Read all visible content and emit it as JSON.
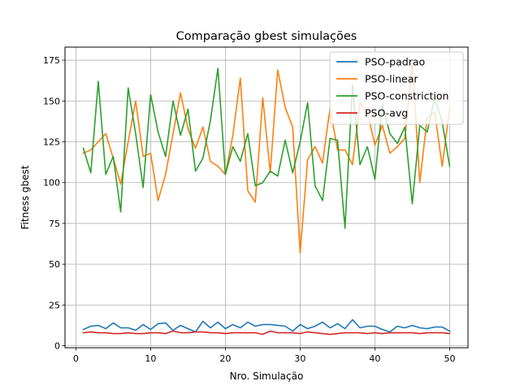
{
  "chart_data": {
    "type": "line",
    "title": "Comparação gbest simulações",
    "xlabel": "Nro. Simulação",
    "ylabel": "Fitness gbest",
    "xlim": [
      -1.45,
      52.45
    ],
    "ylim": [
      -1.2,
      183
    ],
    "xticks": [
      0,
      10,
      20,
      30,
      40,
      50
    ],
    "yticks": [
      0,
      25,
      50,
      75,
      100,
      125,
      150,
      175
    ],
    "grid": true,
    "legend_position": "top-right",
    "x": [
      1,
      2,
      3,
      4,
      5,
      6,
      7,
      8,
      9,
      10,
      11,
      12,
      13,
      14,
      15,
      16,
      17,
      18,
      19,
      20,
      21,
      22,
      23,
      24,
      25,
      26,
      27,
      28,
      29,
      30,
      31,
      32,
      33,
      34,
      35,
      36,
      37,
      38,
      39,
      40,
      41,
      42,
      43,
      44,
      45,
      46,
      47,
      48,
      49,
      50
    ],
    "series": [
      {
        "name": "PSO-padrao",
        "color": "#1f77b4",
        "values": [
          10.0,
          12.0,
          12.5,
          10.5,
          14.0,
          11.0,
          11.0,
          9.5,
          13.0,
          10.0,
          13.5,
          14.0,
          9.5,
          12.5,
          10.5,
          8.5,
          15.0,
          11.0,
          14.5,
          10.5,
          13.0,
          11.0,
          14.5,
          12.0,
          13.0,
          13.0,
          12.5,
          12.0,
          9.0,
          13.0,
          10.5,
          12.0,
          14.5,
          11.0,
          13.5,
          10.5,
          16.0,
          11.0,
          12.0,
          12.0,
          10.0,
          8.5,
          12.0,
          11.0,
          12.5,
          11.0,
          10.5,
          11.5,
          11.5,
          9.0
        ]
      },
      {
        "name": "PSO-linear",
        "color": "#ff7f0e",
        "values": [
          118,
          120,
          125,
          130,
          115,
          99,
          125,
          150,
          116,
          118,
          89,
          105,
          130,
          155,
          133,
          121,
          134,
          113,
          110,
          105,
          129,
          164,
          95,
          88,
          152,
          106,
          169,
          146,
          134,
          57,
          114,
          122,
          112,
          146,
          120,
          120,
          111,
          149,
          143,
          123,
          135,
          118,
          122,
          127,
          174,
          100,
          140,
          143,
          110,
          146
        ]
      },
      {
        "name": "PSO-constriction",
        "color": "#2ca02c",
        "values": [
          121,
          106,
          162,
          105,
          116,
          82,
          158,
          130,
          97,
          154,
          131,
          116,
          150,
          129,
          145,
          107,
          115,
          138,
          170,
          105,
          122,
          113,
          130,
          98,
          100,
          107,
          104,
          126,
          106,
          125,
          149,
          98,
          89,
          127,
          126,
          72,
          160,
          111,
          122,
          102,
          148,
          130,
          124,
          134,
          87,
          135,
          131,
          152,
          137,
          110
        ]
      },
      {
        "name": "PSO-avg",
        "color": "#d62728",
        "values": [
          8.0,
          8.5,
          8.0,
          8.0,
          7.5,
          7.5,
          8.0,
          7.5,
          7.5,
          8.0,
          8.0,
          7.5,
          9.0,
          8.0,
          8.0,
          8.5,
          8.5,
          8.0,
          8.0,
          7.5,
          8.0,
          8.0,
          8.0,
          8.0,
          7.0,
          9.0,
          8.0,
          8.0,
          8.0,
          7.5,
          8.5,
          8.0,
          7.5,
          7.0,
          7.5,
          8.0,
          8.0,
          8.0,
          7.5,
          8.0,
          7.5,
          8.0,
          8.0,
          8.0,
          8.0,
          7.5,
          8.0,
          8.0,
          8.0,
          7.5
        ]
      }
    ]
  }
}
